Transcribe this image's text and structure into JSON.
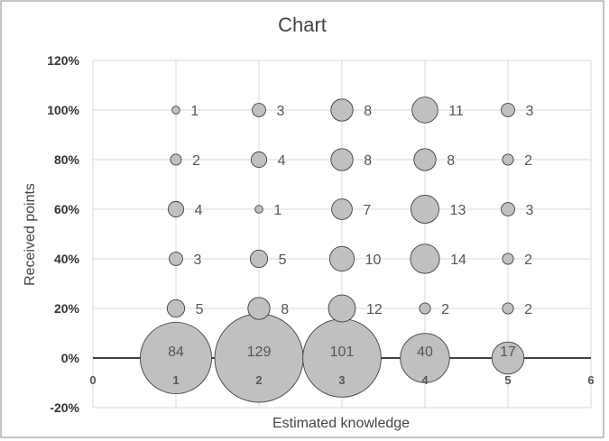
{
  "chart_data": {
    "type": "scatter",
    "title": "Chart",
    "xlabel": "Estimated knowledge",
    "ylabel": "Received points",
    "xlim": [
      0,
      6
    ],
    "ylim": [
      -20,
      120
    ],
    "x_ticks": [
      "0",
      "1",
      "2",
      "3",
      "4",
      "5",
      "6"
    ],
    "y_ticks": [
      "120%",
      "100%",
      "80%",
      "60%",
      "40%",
      "20%",
      "0%",
      "-20%"
    ],
    "grid": "vertical and horizontal gridlines",
    "bubble_fill": "#c0c0c0",
    "bubble_stroke": "#404040",
    "points": [
      {
        "x": 1,
        "y": 100,
        "size": 1
      },
      {
        "x": 1,
        "y": 80,
        "size": 2
      },
      {
        "x": 1,
        "y": 60,
        "size": 4
      },
      {
        "x": 1,
        "y": 40,
        "size": 3
      },
      {
        "x": 1,
        "y": 20,
        "size": 5
      },
      {
        "x": 1,
        "y": 0,
        "size": 84
      },
      {
        "x": 2,
        "y": 100,
        "size": 3
      },
      {
        "x": 2,
        "y": 80,
        "size": 4
      },
      {
        "x": 2,
        "y": 60,
        "size": 1
      },
      {
        "x": 2,
        "y": 40,
        "size": 5
      },
      {
        "x": 2,
        "y": 20,
        "size": 8
      },
      {
        "x": 2,
        "y": 0,
        "size": 129
      },
      {
        "x": 3,
        "y": 100,
        "size": 8
      },
      {
        "x": 3,
        "y": 80,
        "size": 8
      },
      {
        "x": 3,
        "y": 60,
        "size": 7
      },
      {
        "x": 3,
        "y": 40,
        "size": 10
      },
      {
        "x": 3,
        "y": 20,
        "size": 12
      },
      {
        "x": 3,
        "y": 0,
        "size": 101
      },
      {
        "x": 4,
        "y": 100,
        "size": 11
      },
      {
        "x": 4,
        "y": 80,
        "size": 8
      },
      {
        "x": 4,
        "y": 60,
        "size": 13
      },
      {
        "x": 4,
        "y": 40,
        "size": 14
      },
      {
        "x": 4,
        "y": 20,
        "size": 2
      },
      {
        "x": 4,
        "y": 0,
        "size": 40
      },
      {
        "x": 5,
        "y": 100,
        "size": 3
      },
      {
        "x": 5,
        "y": 80,
        "size": 2
      },
      {
        "x": 5,
        "y": 60,
        "size": 3
      },
      {
        "x": 5,
        "y": 40,
        "size": 2
      },
      {
        "x": 5,
        "y": 20,
        "size": 2
      },
      {
        "x": 5,
        "y": 0,
        "size": 17
      }
    ]
  }
}
